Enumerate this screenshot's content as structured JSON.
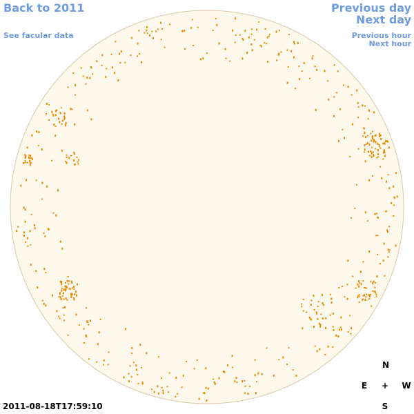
{
  "links": {
    "back": "Back to 2011",
    "facular": "See facular data",
    "previous_day": "Previous day",
    "next_day": "Next day",
    "previous_hour": "Previous hour",
    "next_hour": "Next hour"
  },
  "timestamp": "2011-08-18T17:59:10",
  "compass": {
    "north": "N",
    "east": "E",
    "center": "+",
    "west": "W",
    "south": "S"
  }
}
